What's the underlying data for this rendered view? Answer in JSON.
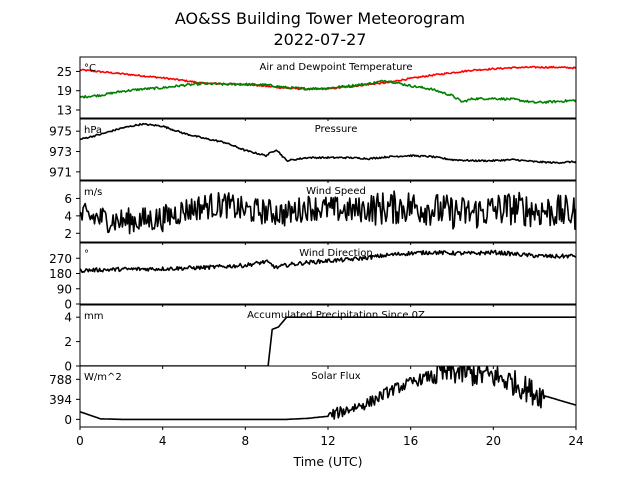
{
  "figure": {
    "title_line1": "AO&SS Building Tower Meteorogram",
    "title_line2": "2022-07-27",
    "xlabel": "Time (UTC)"
  },
  "chart_data": [
    {
      "type": "line",
      "title": "Air and Dewpoint Temperature",
      "unit": "°C",
      "xlim": [
        0,
        24
      ],
      "x_ticks": [
        0,
        4,
        8,
        12,
        16,
        20,
        24
      ],
      "ylim": [
        10.5,
        29.5
      ],
      "y_ticks": [
        13,
        19,
        25
      ],
      "series": [
        {
          "color": "#ff0000",
          "noise": 0.25,
          "x": [
            0,
            2,
            4,
            5,
            6,
            8,
            10,
            11,
            12,
            13,
            14,
            15,
            15.5,
            16,
            17,
            18,
            19,
            20,
            21,
            22,
            23,
            24
          ],
          "y": [
            25.5,
            24.3,
            23,
            22.2,
            21.3,
            21,
            19.8,
            19.5,
            19.6,
            20.2,
            21,
            21.6,
            22.3,
            22.8,
            23.8,
            24.6,
            25.4,
            25.8,
            26.2,
            26.3,
            26.3,
            26.1
          ]
        },
        {
          "color": "#008000",
          "noise": 0.35,
          "x": [
            0,
            1,
            2,
            3,
            4,
            5,
            6,
            7,
            8,
            9,
            10,
            11,
            12,
            13,
            14,
            14.8,
            15.3,
            16,
            17,
            18,
            18.5,
            19,
            20,
            21,
            22,
            23,
            24
          ],
          "y": [
            17,
            17.6,
            18.8,
            19.5,
            19.9,
            20.7,
            21.2,
            21,
            21,
            20.8,
            20,
            19.6,
            19.8,
            20.5,
            21.2,
            22.2,
            21.5,
            20.5,
            19.5,
            17.5,
            15.5,
            16.5,
            16.6,
            16.3,
            15.3,
            15.6,
            16
          ]
        }
      ]
    },
    {
      "type": "line",
      "title": "Pressure",
      "unit": "hPa",
      "xlim": [
        0,
        24
      ],
      "ylim": [
        970.2,
        976.2
      ],
      "y_ticks": [
        971,
        973,
        975
      ],
      "series": [
        {
          "color": "#000000",
          "noise": 0.08,
          "x": [
            0,
            1,
            2,
            3,
            4,
            5,
            6,
            7,
            8,
            9,
            9.5,
            10,
            11,
            12,
            13,
            14,
            15,
            16,
            17,
            18,
            19,
            20,
            21,
            22,
            23,
            24
          ],
          "y": [
            974.2,
            974.7,
            975.3,
            975.7,
            975.5,
            974.8,
            974.3,
            973.9,
            973.1,
            972.6,
            973.2,
            972.1,
            972.4,
            972.4,
            972.4,
            972.3,
            972.5,
            972.6,
            972.5,
            972.2,
            972.1,
            972.1,
            972.2,
            972.0,
            971.9,
            972.0
          ]
        }
      ]
    },
    {
      "type": "line",
      "title": "Wind Speed",
      "unit": "m/s",
      "xlim": [
        0,
        24
      ],
      "ylim": [
        1,
        8
      ],
      "y_ticks": [
        2,
        4,
        6
      ],
      "series": [
        {
          "color": "#000000",
          "noise": 1.5,
          "x": [
            0,
            1,
            2,
            3,
            4,
            5,
            6,
            7,
            8,
            9,
            10,
            11,
            12,
            13,
            14,
            15,
            16,
            17,
            18,
            19,
            20,
            21,
            22,
            23,
            24
          ],
          "y": [
            4,
            3.7,
            3.4,
            3.5,
            3.7,
            4.6,
            5.1,
            5.3,
            4.6,
            4.5,
            4.2,
            5,
            4.8,
            4.6,
            4.8,
            4.9,
            5.1,
            4.8,
            4.4,
            4.3,
            4.7,
            4.9,
            4.6,
            4.5,
            4.3
          ]
        }
      ]
    },
    {
      "type": "line",
      "title": "Wind Direction",
      "unit": "°",
      "xlim": [
        0,
        24
      ],
      "ylim": [
        0,
        360
      ],
      "y_ticks": [
        0,
        90,
        180,
        270
      ],
      "series": [
        {
          "color": "#000000",
          "noise": 12,
          "x": [
            0,
            2,
            4,
            6,
            8,
            9,
            9.5,
            10,
            11,
            12,
            13,
            14,
            15,
            16,
            17,
            18,
            19,
            20,
            21,
            22,
            23,
            24
          ],
          "y": [
            198,
            205,
            208,
            215,
            228,
            250,
            215,
            230,
            245,
            255,
            262,
            275,
            290,
            300,
            305,
            300,
            298,
            305,
            295,
            285,
            280,
            285
          ]
        }
      ]
    },
    {
      "type": "line",
      "title": "Accumulated Precipitation Since 0Z",
      "unit": "mm",
      "xlim": [
        0,
        24
      ],
      "ylim": [
        0,
        5
      ],
      "y_ticks": [
        0,
        2,
        4
      ],
      "series": [
        {
          "color": "#000000",
          "noise": 0,
          "x": [
            0,
            9.1,
            9.3,
            9.6,
            10,
            24
          ],
          "y": [
            0,
            0,
            3,
            3.2,
            4,
            4
          ]
        }
      ]
    },
    {
      "type": "line",
      "title": "Solar Flux",
      "unit": "W/m^2",
      "xlim": [
        0,
        24
      ],
      "ylim": [
        -150,
        1050
      ],
      "y_ticks": [
        0,
        394,
        788
      ],
      "series": [
        {
          "color": "#000000",
          "noise": 160,
          "x": [
            0,
            0.5,
            1,
            2,
            4,
            6,
            8,
            10,
            11,
            12,
            13,
            14,
            15,
            16,
            17,
            18,
            19,
            20,
            21,
            22,
            23,
            24
          ],
          "y": [
            150,
            80,
            10,
            0,
            0,
            0,
            0,
            0,
            20,
            60,
            200,
            330,
            560,
            720,
            860,
            940,
            900,
            850,
            720,
            520,
            400,
            280
          ]
        }
      ]
    }
  ]
}
